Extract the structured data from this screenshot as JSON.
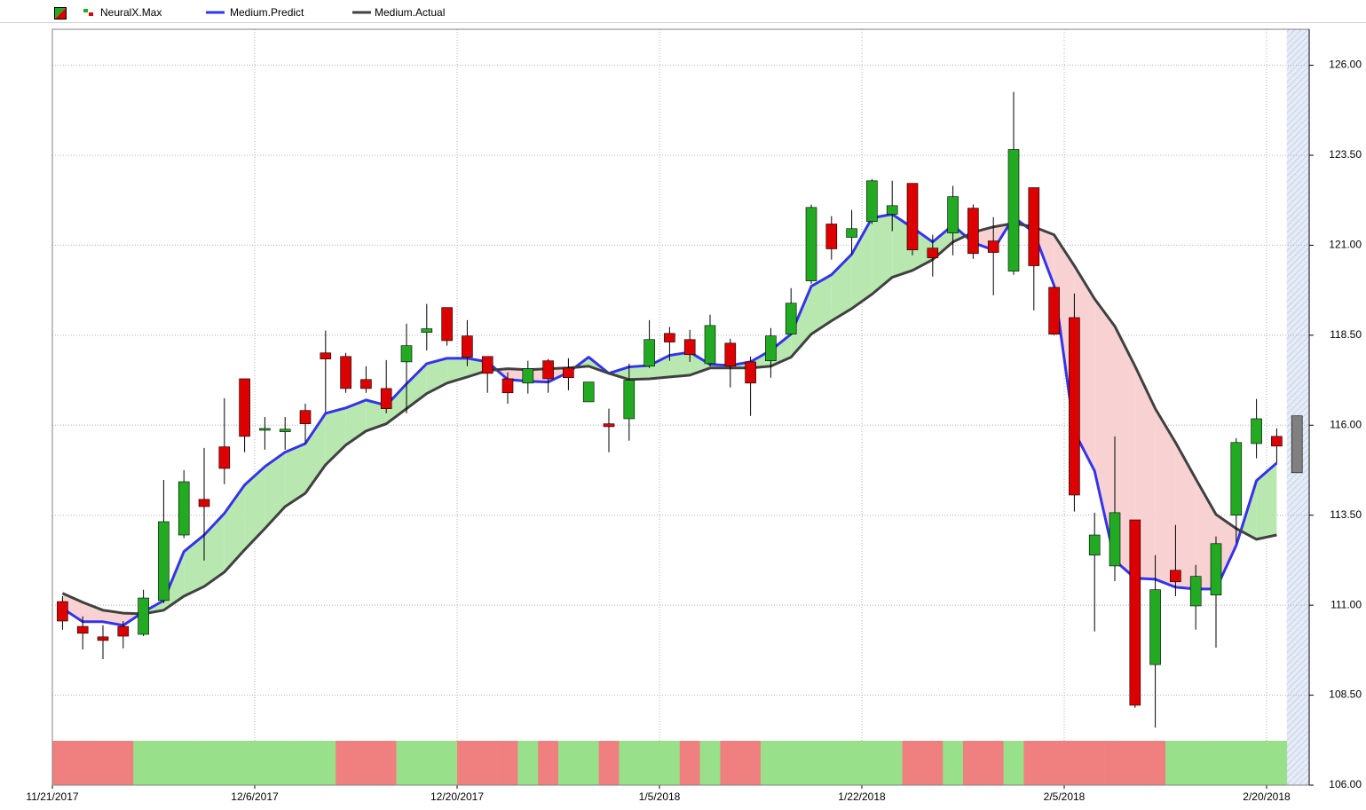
{
  "chart_data": {
    "type": "candlestick",
    "categories": [
      "11/21/2017",
      null,
      null,
      null,
      null,
      null,
      null,
      null,
      null,
      null,
      "12/6/2017",
      null,
      null,
      null,
      null,
      null,
      null,
      null,
      null,
      null,
      "12/20/2017",
      null,
      null,
      null,
      null,
      null,
      null,
      null,
      null,
      null,
      "1/5/2018",
      null,
      null,
      null,
      null,
      null,
      null,
      null,
      null,
      null,
      "1/22/2018",
      null,
      null,
      null,
      null,
      null,
      null,
      null,
      null,
      null,
      "2/5/2018",
      null,
      null,
      null,
      null,
      null,
      null,
      null,
      null,
      null,
      "2/20/2018",
      null
    ],
    "series": [
      {
        "name": "NeuralX.Max",
        "type": "candlestick",
        "up_color": "#22aa22",
        "down_color": "#dd0000",
        "forecast_color": "#808080",
        "open": [
          111.1,
          110.41,
          110.12,
          110.41,
          110.19,
          111.13,
          112.95,
          113.94,
          115.4,
          117.29,
          115.86,
          115.82,
          116.41,
          118.01,
          117.91,
          117.27,
          117.02,
          117.76,
          118.58,
          119.27,
          118.48,
          117.91,
          117.29,
          117.17,
          117.79,
          117.59,
          116.65,
          116.04,
          116.18,
          117.64,
          118.55,
          118.38,
          117.71,
          118.28,
          117.76,
          117.79,
          118.53,
          120.01,
          121.59,
          121.22,
          121.66,
          121.86,
          122.72,
          120.92,
          121.34,
          122.03,
          121.12,
          120.28,
          122.6,
          119.83,
          118.99,
          112.39,
          112.09,
          113.37,
          109.35,
          111.97,
          110.98,
          111.28,
          113.5,
          115.49,
          115.69,
          116.26
        ],
        "high": [
          111.25,
          110.69,
          110.44,
          110.56,
          111.43,
          114.48,
          114.75,
          115.37,
          116.75,
          117.29,
          116.23,
          116.23,
          116.6,
          118.63,
          118.01,
          117.64,
          117.81,
          118.82,
          119.37,
          119.27,
          118.92,
          117.91,
          117.47,
          117.79,
          117.84,
          117.86,
          117.2,
          116.46,
          117.71,
          118.92,
          118.73,
          118.65,
          119.07,
          118.4,
          117.91,
          118.7,
          119.81,
          122.13,
          121.81,
          121.98,
          122.84,
          122.79,
          122.72,
          121.29,
          122.65,
          122.13,
          121.78,
          125.26,
          122.6,
          119.83,
          119.66,
          113.57,
          115.69,
          113.37,
          112.39,
          113.23,
          112.12,
          112.91,
          115.64,
          116.73,
          115.91,
          null
        ],
        "low": [
          110.32,
          109.77,
          109.5,
          109.8,
          110.14,
          111.06,
          112.86,
          112.24,
          114.36,
          115.25,
          115.32,
          115.32,
          115.49,
          116.36,
          116.9,
          116.9,
          116.33,
          116.33,
          118.08,
          118.21,
          117.64,
          116.9,
          116.6,
          116.88,
          116.9,
          116.97,
          116.65,
          115.25,
          115.57,
          117.59,
          117.79,
          117.76,
          117.64,
          117.05,
          116.26,
          117.32,
          118.5,
          119.93,
          120.6,
          120.75,
          121.59,
          121.39,
          120.72,
          120.13,
          120.72,
          120.62,
          119.61,
          120.18,
          119.19,
          118.5,
          113.6,
          110.27,
          111.67,
          108.15,
          107.6,
          111.25,
          110.32,
          109.82,
          112.73,
          115.08,
          114.95,
          null
        ],
        "close": [
          110.56,
          110.22,
          110.02,
          110.14,
          111.2,
          113.32,
          114.43,
          113.74,
          114.8,
          115.69,
          115.91,
          115.89,
          116.04,
          117.84,
          117.02,
          117.02,
          116.46,
          118.21,
          118.68,
          118.35,
          117.89,
          117.44,
          116.9,
          117.57,
          117.29,
          117.32,
          117.2,
          115.96,
          117.25,
          118.38,
          118.31,
          117.96,
          118.77,
          117.64,
          117.17,
          118.48,
          119.39,
          122.05,
          120.9,
          121.46,
          122.79,
          122.1,
          120.87,
          120.65,
          122.35,
          120.77,
          120.8,
          123.66,
          120.43,
          118.53,
          114.06,
          112.95,
          113.57,
          108.22,
          111.43,
          111.65,
          111.8,
          112.71,
          115.52,
          116.18,
          115.42,
          114.68
        ]
      },
      {
        "name": "Medium.Predict",
        "type": "line",
        "color": "#3333ee",
        "values": [
          110.91,
          110.54,
          110.54,
          110.44,
          110.81,
          111.13,
          112.49,
          112.95,
          113.55,
          114.34,
          114.85,
          115.25,
          115.49,
          116.33,
          116.48,
          116.7,
          116.55,
          117.15,
          117.71,
          117.86,
          117.86,
          117.76,
          117.27,
          117.22,
          117.2,
          117.47,
          117.89,
          117.44,
          117.62,
          117.66,
          117.94,
          118.03,
          117.69,
          117.66,
          117.76,
          118.08,
          118.53,
          119.86,
          120.18,
          120.75,
          121.76,
          121.86,
          121.49,
          121.09,
          121.56,
          121.07,
          120.87,
          121.78,
          121.36,
          119.88,
          115.82,
          114.73,
          112.24,
          111.75,
          111.72,
          111.5,
          111.45,
          111.45,
          112.66,
          114.46,
          114.95,
          null
        ]
      },
      {
        "name": "Medium.Actual",
        "type": "line",
        "color": "#404040",
        "values": [
          111.33,
          111.08,
          110.86,
          110.78,
          110.76,
          110.86,
          111.25,
          111.52,
          111.92,
          112.54,
          113.13,
          113.74,
          114.11,
          114.9,
          115.45,
          115.84,
          116.04,
          116.46,
          116.88,
          117.17,
          117.34,
          117.52,
          117.57,
          117.54,
          117.57,
          117.59,
          117.64,
          117.44,
          117.27,
          117.29,
          117.34,
          117.39,
          117.59,
          117.59,
          117.59,
          117.64,
          117.89,
          118.53,
          118.9,
          119.24,
          119.64,
          120.11,
          120.3,
          120.6,
          121.09,
          121.36,
          121.51,
          121.61,
          121.51,
          121.29,
          120.43,
          119.51,
          118.75,
          117.64,
          116.46,
          115.52,
          114.51,
          113.52,
          113.13,
          112.83,
          112.95,
          null
        ]
      }
    ],
    "signals": {
      "up_color": "#98e08a",
      "down_color": "#f08080",
      "values": [
        -1,
        -1,
        -1,
        -1,
        1,
        1,
        1,
        1,
        1,
        1,
        1,
        1,
        1,
        1,
        -1,
        -1,
        -1,
        1,
        1,
        1,
        -1,
        -1,
        -1,
        1,
        -1,
        1,
        1,
        -1,
        1,
        1,
        1,
        -1,
        1,
        -1,
        -1,
        1,
        1,
        1,
        1,
        1,
        1,
        1,
        -1,
        -1,
        1,
        -1,
        -1,
        1,
        -1,
        -1,
        -1,
        -1,
        -1,
        -1,
        -1,
        1,
        1,
        1,
        1,
        1,
        1,
        null
      ]
    },
    "fill_up_color": "#b8e8b0",
    "fill_down_color": "#f8d2d2",
    "ylim": [
      106,
      127
    ],
    "yticks": [
      {
        "value": 106,
        "label": "106.00"
      },
      {
        "value": 108.5,
        "label": "108.50"
      },
      {
        "value": 111,
        "label": "111.00"
      },
      {
        "value": 113.5,
        "label": "113.50"
      },
      {
        "value": 116,
        "label": "116.00"
      },
      {
        "value": 118.5,
        "label": "118.50"
      },
      {
        "value": 121,
        "label": "121.00"
      },
      {
        "value": 123.5,
        "label": "123.50"
      },
      {
        "value": 126,
        "label": "126.00"
      }
    ],
    "grid": true
  }
}
